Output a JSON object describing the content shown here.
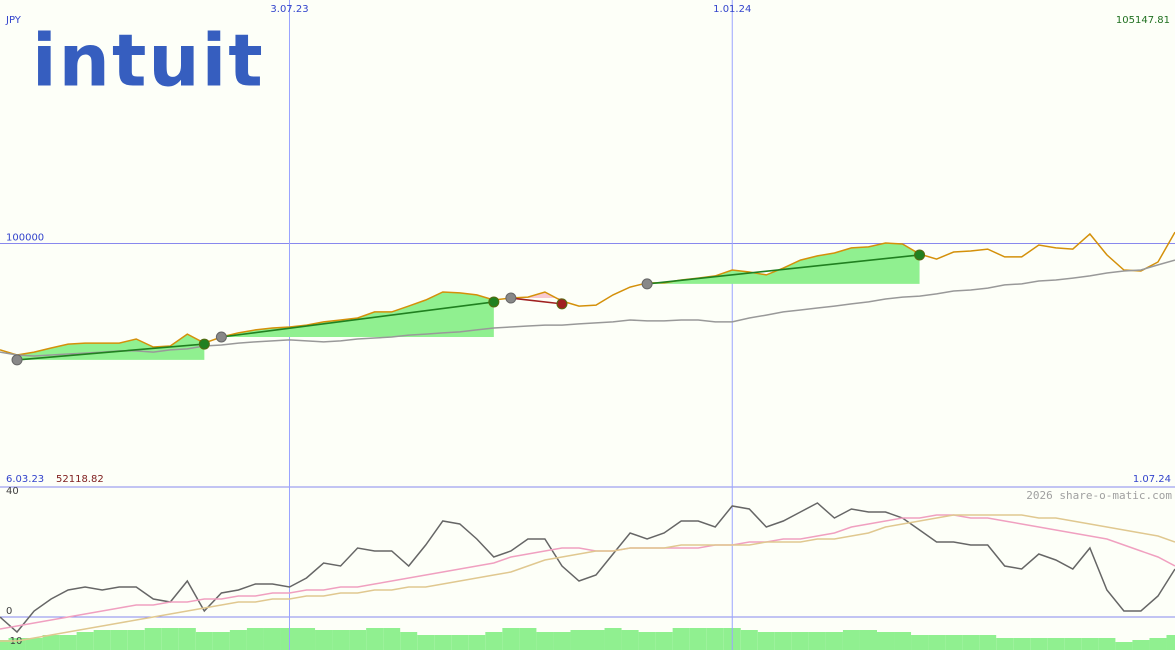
{
  "logo": "intuit",
  "watermark": "2026 share-o-matic.com",
  "chart_data": [
    {
      "type": "line",
      "currency": "JPY",
      "high": 105147.81,
      "low": 52118.82,
      "categories": [
        "6.03.23",
        null,
        null,
        null,
        null,
        null,
        null,
        null,
        null,
        null,
        null,
        null,
        null,
        null,
        null,
        null,
        null,
        "3.07.23",
        null,
        null,
        null,
        null,
        null,
        null,
        null,
        null,
        null,
        null,
        null,
        null,
        null,
        null,
        null,
        null,
        null,
        null,
        null,
        null,
        null,
        null,
        null,
        null,
        null,
        "1.01.24",
        null,
        null,
        null,
        null,
        null,
        null,
        null,
        null,
        null,
        null,
        null,
        null,
        null,
        null,
        null,
        null,
        null,
        null,
        null,
        null,
        null,
        null,
        null,
        null,
        null,
        "1.07.24"
      ],
      "ylim": [
        0,
        200000
      ],
      "yticks": [
        100000
      ],
      "grid": true,
      "series": [
        {
          "color": "#d4900a",
          "values": [
            56300,
            54200,
            55400,
            57100,
            58700,
            59100,
            59100,
            59100,
            60800,
            57500,
            57900,
            62800,
            59100,
            61600,
            63300,
            64500,
            65300,
            65700,
            66500,
            67800,
            68600,
            69400,
            71900,
            71900,
            74300,
            76800,
            80100,
            79700,
            78900,
            76800,
            77600,
            78000,
            80100,
            76400,
            74300,
            74700,
            78900,
            82100,
            83800,
            83800,
            85000,
            85800,
            86700,
            89100,
            88300,
            87100,
            89900,
            93200,
            94900,
            96100,
            98200,
            98600,
            100200,
            99800,
            95700,
            93600,
            96500,
            96900,
            97700,
            94500,
            94500,
            99400,
            98200,
            97700,
            103900,
            95300,
            89100,
            88700,
            92400,
            104700
          ]
        },
        {
          "color": "#999999",
          "values": [
            55400,
            54200,
            53800,
            54200,
            54600,
            55000,
            55400,
            55900,
            55900,
            55400,
            56300,
            56700,
            57900,
            58300,
            59100,
            59600,
            60000,
            60400,
            60000,
            59600,
            60000,
            60800,
            61200,
            61600,
            62400,
            62800,
            63300,
            63700,
            64500,
            65300,
            65700,
            66100,
            66500,
            66500,
            67000,
            67400,
            67800,
            68600,
            68200,
            68200,
            68600,
            68600,
            67800,
            67800,
            69400,
            70600,
            71900,
            72700,
            73500,
            74300,
            75200,
            76000,
            77200,
            78000,
            78400,
            79300,
            80500,
            80900,
            81700,
            83000,
            83400,
            84600,
            85000,
            85800,
            86700,
            87900,
            88700,
            89100,
            91200,
            93200
          ]
        }
      ],
      "trades": [
        {
          "x0": 1,
          "y0": 52200,
          "x1": 12,
          "y1": 58700,
          "color": "#208020",
          "fill": "#90f090"
        },
        {
          "x0": 13,
          "y0": 61600,
          "x1": 29,
          "y1": 76000,
          "color": "#208020",
          "fill": "#90f090"
        },
        {
          "x0": 30,
          "y0": 77600,
          "x1": 33,
          "y1": 75200,
          "color": "#a02020",
          "fill": "#f8c8d0"
        },
        {
          "x0": 38,
          "y0": 83400,
          "x1": 54,
          "y1": 95300,
          "color": "#208020",
          "fill": "#90f090"
        }
      ]
    },
    {
      "type": "line",
      "ylim": [
        -11,
        43
      ],
      "yticks": [
        40,
        0,
        -10
      ],
      "series": [
        {
          "color": "#666666",
          "values": [
            0,
            -5,
            2,
            6,
            9,
            10,
            9,
            10,
            10,
            6,
            5,
            12,
            2,
            8,
            9,
            11,
            11,
            10,
            13,
            18,
            17,
            23,
            22,
            22,
            17,
            24,
            32,
            31,
            26,
            20,
            22,
            26,
            26,
            17,
            12,
            14,
            21,
            28,
            26,
            28,
            32,
            32,
            30,
            37,
            36,
            30,
            32,
            35,
            38,
            33,
            36,
            35,
            35,
            33,
            29,
            25,
            25,
            24,
            24,
            17,
            16,
            21,
            19,
            16,
            23,
            9,
            2,
            2,
            7,
            16
          ]
        },
        {
          "color": "#f0a0c0",
          "values": [
            -4,
            -3,
            -2,
            -1,
            0,
            1,
            2,
            3,
            4,
            4,
            5,
            5,
            6,
            6,
            7,
            7,
            8,
            8,
            9,
            9,
            10,
            10,
            11,
            12,
            13,
            14,
            15,
            16,
            17,
            18,
            20,
            21,
            22,
            23,
            23,
            22,
            22,
            23,
            23,
            23,
            23,
            23,
            24,
            24,
            25,
            25,
            26,
            26,
            27,
            28,
            30,
            31,
            32,
            33,
            33,
            34,
            34,
            33,
            33,
            32,
            31,
            30,
            29,
            28,
            27,
            26,
            24,
            22,
            20,
            17
          ]
        },
        {
          "color": "#e0c890",
          "values": [
            -8,
            -8,
            -7,
            -6,
            -5,
            -4,
            -3,
            -2,
            -1,
            0,
            1,
            2,
            3,
            4,
            5,
            5,
            6,
            6,
            7,
            7,
            8,
            8,
            9,
            9,
            10,
            10,
            11,
            12,
            13,
            14,
            15,
            17,
            19,
            20,
            21,
            22,
            22,
            23,
            23,
            23,
            24,
            24,
            24,
            24,
            24,
            25,
            25,
            25,
            26,
            26,
            27,
            28,
            30,
            31,
            32,
            33,
            34,
            34,
            34,
            34,
            34,
            33,
            33,
            32,
            31,
            30,
            29,
            28,
            27,
            25
          ]
        }
      ],
      "volume": {
        "color": "#90f090",
        "vlim": [
          0,
          162
        ],
        "values": [
          10,
          12,
          12,
          15,
          15,
          18,
          20,
          20,
          20,
          22,
          22,
          22,
          18,
          18,
          20,
          22,
          22,
          22,
          22,
          20,
          20,
          20,
          22,
          22,
          18,
          15,
          15,
          15,
          15,
          18,
          22,
          22,
          18,
          18,
          20,
          20,
          22,
          20,
          18,
          18,
          22,
          22,
          22,
          22,
          20,
          18,
          18,
          18,
          18,
          18,
          20,
          20,
          18,
          18,
          15,
          15,
          15,
          15,
          15,
          12,
          12,
          12,
          12,
          12,
          12,
          12,
          8,
          10,
          12,
          15
        ]
      }
    }
  ]
}
